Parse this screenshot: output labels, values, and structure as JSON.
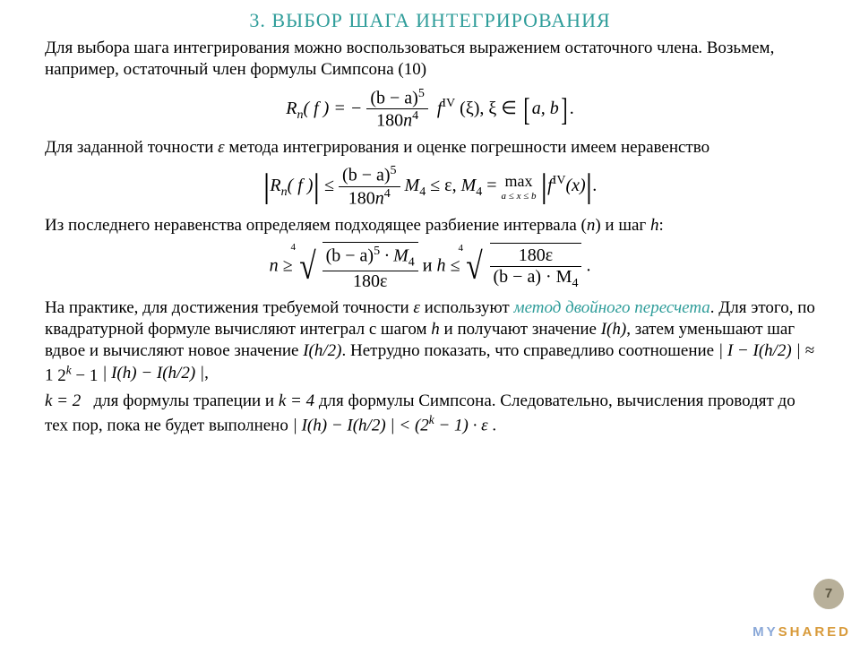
{
  "title": "3. ВЫБОР ШАГА ИНТЕГРИРОВАНИЯ",
  "para1": "Для выбора шага интегрирования можно воспользоваться выражением остаточного члена. Возьмем, например, остаточный член формулы Симпсона (10)",
  "para2a": "Для заданной точности ",
  "para2b": " метода интегрирования и оценке погрешности имеем неравенство",
  "para3a": "Из последнего неравенства определяем подходящее разбиение интервала (",
  "para3b": ") и шаг ",
  "para3c": ":",
  "para4a": "На практике, для достижения требуемой точности ",
  "para4b": " используют ",
  "method_name": "метод двойного пересчета",
  "para4c": ". Для этого, по квадратурной формуле вычисляют интеграл с шагом ",
  "para4d": " и получают значение ",
  "para4e": ", затем уменьшают шаг вдвое и вычисляют новое значение ",
  "para4f": ". Нетрудно показать, что справедливо соотношение ",
  "para5a": " для формулы трапеции и ",
  "para5b": " для формулы Симпсона. Следовательно, вычисления проводят до тех пор, пока не будет выполнено ",
  "sym": {
    "eps": "ε",
    "n": "n",
    "h": "h",
    "xi": "ξ",
    "I_h": "I(h)",
    "I_h2": "I(h/2)",
    "k2": "k = 2",
    "k4": "k = 4"
  },
  "f1": {
    "lhs": "R",
    "sub_n": "n",
    "f": "( f ) = −",
    "num": "(b − a)",
    "num_exp": "5",
    "den_180": "180",
    "den_n": "n",
    "den_exp": "4",
    "fIV": "f",
    "fIV_exp": "IV",
    "xi": "(ξ),   ξ ∈",
    "interval": "a, b",
    "dot": "."
  },
  "f2": {
    "abs_l": "|",
    "R": "R",
    "n": "n",
    "f": "( f )",
    "le": " ≤ ",
    "num": "(b − a)",
    "num_exp": "5",
    "den_180": "180",
    "den_n": "n",
    "den_exp": "4",
    "M4": "M",
    "M4_sub": "4",
    "le_eps": " ≤ ε,   ",
    "M4def": "M",
    "M4def_sub": "4",
    "eq": " = ",
    "max": "max",
    "maxsub": "a ≤ x ≤ b",
    "fIV": "f",
    "fIV_exp": "IV",
    "x": "(x)",
    "dot": "."
  },
  "f3": {
    "n": "n ≥ ",
    "num1": "(b − a)",
    "num1_exp": "5",
    "num1_M": " · M",
    "num1_M_sub": "4",
    "den1": "180ε",
    "and": "     и     ",
    "h": "h ≤ ",
    "num2": "180ε",
    "den2a": "(b − a) · M",
    "den2a_sub": "4",
    "dot": "."
  },
  "f4": {
    "lhs": "| I − I(h/2) | ≈ ",
    "num": "1",
    "den_2": "2",
    "den_k": "k",
    "den_m1": " − 1",
    "rhs": " | I(h) − I(h/2) |",
    "comma": ","
  },
  "f5": {
    "expr": "| I(h) − I(h/2) | < (2",
    "k": "k",
    "m1": " − 1) · ε",
    "dot": " ."
  },
  "page_num": "7",
  "watermark_1": "MY",
  "watermark_2": "SHARED",
  "colors": {
    "title": "#2f9d9a",
    "text": "#000000",
    "badge_bg": "#b8b09a",
    "badge_fg": "#5a5440",
    "wm1": "#8aa8d8",
    "wm2": "#d89a3a"
  }
}
